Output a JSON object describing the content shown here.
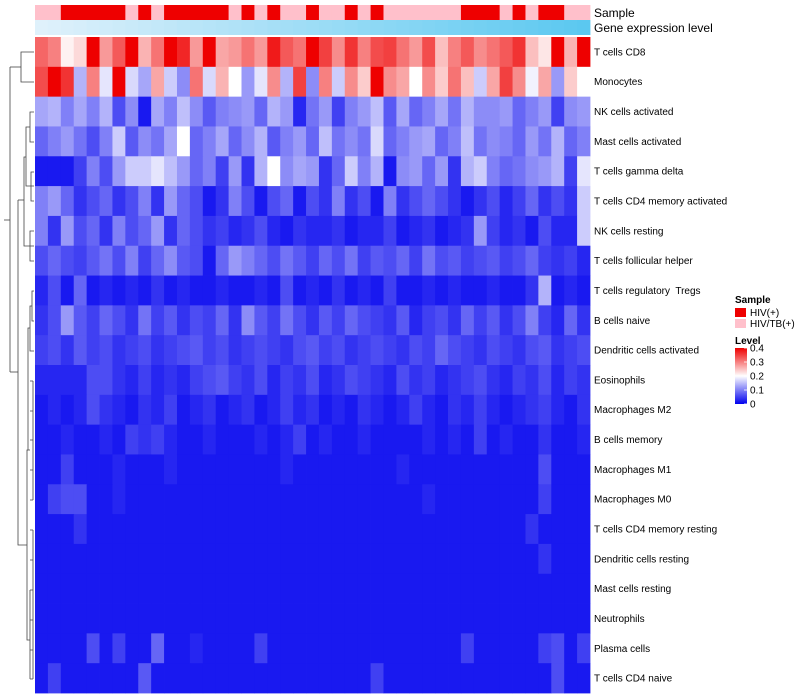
{
  "chart_data": {
    "type": "heatmap",
    "annotation_labels": {
      "sample": "Sample",
      "gene": "Gene expression level"
    },
    "legend": {
      "sample_title": "Sample",
      "sample_entries": [
        {
          "name": "HIV(+)",
          "color": "#ee0000"
        },
        {
          "name": "HIV/TB(+)",
          "color": "#ffc0cb"
        }
      ],
      "level_title": "Level",
      "level_ticks": [
        "0.4",
        "0.3",
        "0.2",
        "0.1",
        "0"
      ],
      "level_values": [
        0.4,
        0.3,
        0.2,
        0.1,
        0
      ]
    },
    "color_scale": {
      "min": 0,
      "mid": 0.2,
      "max": 0.4,
      "low": "#0000ee",
      "mid_color": "#ffffff",
      "high": "#ee0000"
    },
    "gene_bar_colors": [
      "#dff1fb",
      "#5bc8f0"
    ],
    "sample_group": [
      1,
      1,
      0,
      0,
      0,
      0,
      0,
      1,
      0,
      1,
      0,
      0,
      0,
      0,
      0,
      1,
      0,
      1,
      0,
      1,
      1,
      0,
      1,
      1,
      0,
      1,
      0,
      1,
      1,
      1,
      1,
      1,
      1,
      0,
      0,
      0,
      1,
      0,
      1,
      0,
      0,
      1,
      1
    ],
    "rows": [
      "T cells CD8",
      "Monocytes",
      "NK cells activated",
      "Mast cells activated",
      "T cells gamma delta",
      "T cells CD4 memory activated",
      "NK cells resting",
      "T cells follicular helper",
      "T cells regulatory  Tregs",
      "B cells naive",
      "Dendritic cells activated",
      "Eosinophils",
      "Macrophages M2",
      "B cells memory",
      "Macrophages M1",
      "Macrophages M0",
      "T cells CD4 memory resting",
      "Dendritic cells resting",
      "Mast cells resting",
      "Neutrophils",
      "Plasma cells",
      "T cells CD4 naive"
    ],
    "values": [
      [
        0.32,
        0.3,
        0.21,
        0.23,
        0.4,
        0.28,
        0.33,
        0.4,
        0.26,
        0.31,
        0.4,
        0.37,
        0.28,
        0.4,
        0.27,
        0.28,
        0.31,
        0.28,
        0.38,
        0.33,
        0.31,
        0.4,
        0.35,
        0.29,
        0.36,
        0.3,
        0.34,
        0.35,
        0.31,
        0.28,
        0.34,
        0.25,
        0.3,
        0.33,
        0.29,
        0.31,
        0.33,
        0.36,
        0.25,
        0.22,
        0.4,
        0.26,
        0.4
      ],
      [
        0.34,
        0.4,
        0.36,
        0.14,
        0.3,
        0.18,
        0.4,
        0.17,
        0.13,
        0.27,
        0.16,
        0.11,
        0.31,
        0.17,
        0.26,
        0.2,
        0.12,
        0.18,
        0.29,
        0.14,
        0.35,
        0.11,
        0.3,
        0.16,
        0.29,
        0.24,
        0.4,
        0.29,
        0.27,
        0.2,
        0.29,
        0.24,
        0.31,
        0.25,
        0.16,
        0.27,
        0.35,
        0.29,
        0.19,
        0.27,
        0.12,
        0.24,
        0.2
      ],
      [
        0.13,
        0.14,
        0.1,
        0.13,
        0.1,
        0.14,
        0.06,
        0.11,
        0.02,
        0.13,
        0.1,
        0.15,
        0.11,
        0.07,
        0.1,
        0.11,
        0.12,
        0.08,
        0.14,
        0.12,
        0.03,
        0.09,
        0.12,
        0.05,
        0.1,
        0.12,
        0.15,
        0.07,
        0.13,
        0.08,
        0.1,
        0.13,
        0.09,
        0.14,
        0.11,
        0.11,
        0.12,
        0.08,
        0.1,
        0.12,
        0.05,
        0.11,
        0.12
      ],
      [
        0.08,
        0.1,
        0.12,
        0.09,
        0.06,
        0.1,
        0.16,
        0.07,
        0.11,
        0.09,
        0.13,
        0.2,
        0.08,
        0.1,
        0.13,
        0.08,
        0.11,
        0.14,
        0.07,
        0.1,
        0.12,
        0.08,
        0.15,
        0.09,
        0.11,
        0.09,
        0.17,
        0.08,
        0.1,
        0.12,
        0.13,
        0.08,
        0.1,
        0.15,
        0.09,
        0.11,
        0.1,
        0.08,
        0.12,
        0.09,
        0.14,
        0.08,
        0.1
      ],
      [
        0.02,
        0.02,
        0.02,
        0.05,
        0.1,
        0.06,
        0.12,
        0.16,
        0.16,
        0.18,
        0.15,
        0.12,
        0.08,
        0.1,
        0.05,
        0.12,
        0.04,
        0.14,
        0.2,
        0.11,
        0.13,
        0.12,
        0.04,
        0.08,
        0.16,
        0.1,
        0.14,
        0.02,
        0.11,
        0.12,
        0.08,
        0.12,
        0.04,
        0.14,
        0.16,
        0.1,
        0.08,
        0.09,
        0.11,
        0.12,
        0.14,
        0.05,
        0.18
      ],
      [
        0.1,
        0.12,
        0.08,
        0.04,
        0.06,
        0.08,
        0.04,
        0.06,
        0.1,
        0.04,
        0.12,
        0.08,
        0.06,
        0.02,
        0.04,
        0.1,
        0.06,
        0.02,
        0.06,
        0.08,
        0.02,
        0.06,
        0.04,
        0.1,
        0.04,
        0.06,
        0.02,
        0.1,
        0.04,
        0.06,
        0.08,
        0.06,
        0.04,
        0.02,
        0.04,
        0.06,
        0.03,
        0.05,
        0.08,
        0.04,
        0.06,
        0.04,
        0.16
      ],
      [
        0.1,
        0.04,
        0.12,
        0.06,
        0.08,
        0.04,
        0.1,
        0.06,
        0.08,
        0.12,
        0.04,
        0.08,
        0.06,
        0.04,
        0.05,
        0.03,
        0.04,
        0.06,
        0.03,
        0.02,
        0.04,
        0.03,
        0.03,
        0.04,
        0.02,
        0.03,
        0.03,
        0.05,
        0.02,
        0.03,
        0.04,
        0.02,
        0.03,
        0.04,
        0.12,
        0.05,
        0.03,
        0.04,
        0.02,
        0.06,
        0.03,
        0.03,
        0.16
      ],
      [
        0.06,
        0.08,
        0.06,
        0.05,
        0.07,
        0.09,
        0.06,
        0.1,
        0.05,
        0.08,
        0.11,
        0.07,
        0.06,
        0.02,
        0.08,
        0.12,
        0.1,
        0.08,
        0.06,
        0.09,
        0.07,
        0.05,
        0.08,
        0.06,
        0.09,
        0.05,
        0.07,
        0.06,
        0.08,
        0.05,
        0.09,
        0.06,
        0.07,
        0.05,
        0.06,
        0.07,
        0.05,
        0.06,
        0.08,
        0.05,
        0.04,
        0.05,
        0.03
      ],
      [
        0.03,
        0.06,
        0.02,
        0.08,
        0.02,
        0.03,
        0.02,
        0.03,
        0.02,
        0.04,
        0.02,
        0.03,
        0.02,
        0.02,
        0.03,
        0.02,
        0.02,
        0.03,
        0.02,
        0.06,
        0.02,
        0.03,
        0.02,
        0.04,
        0.02,
        0.03,
        0.02,
        0.05,
        0.02,
        0.02,
        0.03,
        0.02,
        0.03,
        0.02,
        0.02,
        0.03,
        0.02,
        0.02,
        0.04,
        0.14,
        0.02,
        0.03,
        0.02
      ],
      [
        0.04,
        0.06,
        0.12,
        0.07,
        0.05,
        0.08,
        0.06,
        0.04,
        0.09,
        0.05,
        0.07,
        0.04,
        0.06,
        0.05,
        0.08,
        0.04,
        0.11,
        0.07,
        0.05,
        0.09,
        0.06,
        0.04,
        0.07,
        0.05,
        0.08,
        0.06,
        0.05,
        0.04,
        0.07,
        0.03,
        0.05,
        0.06,
        0.04,
        0.08,
        0.05,
        0.07,
        0.04,
        0.06,
        0.1,
        0.05,
        0.03,
        0.08,
        0.04
      ],
      [
        0.05,
        0.06,
        0.04,
        0.07,
        0.05,
        0.06,
        0.04,
        0.05,
        0.06,
        0.04,
        0.05,
        0.06,
        0.07,
        0.05,
        0.06,
        0.04,
        0.05,
        0.06,
        0.05,
        0.04,
        0.06,
        0.07,
        0.05,
        0.06,
        0.04,
        0.05,
        0.06,
        0.05,
        0.04,
        0.06,
        0.05,
        0.08,
        0.06,
        0.05,
        0.04,
        0.06,
        0.05,
        0.04,
        0.06,
        0.07,
        0.04,
        0.05,
        0.06
      ],
      [
        0.03,
        0.03,
        0.03,
        0.03,
        0.06,
        0.06,
        0.04,
        0.03,
        0.05,
        0.03,
        0.04,
        0.03,
        0.05,
        0.06,
        0.07,
        0.05,
        0.04,
        0.06,
        0.03,
        0.05,
        0.04,
        0.06,
        0.03,
        0.04,
        0.06,
        0.05,
        0.04,
        0.03,
        0.06,
        0.04,
        0.05,
        0.03,
        0.04,
        0.05,
        0.06,
        0.04,
        0.03,
        0.05,
        0.04,
        0.06,
        0.03,
        0.05,
        0.04
      ],
      [
        0.02,
        0.03,
        0.02,
        0.03,
        0.06,
        0.04,
        0.03,
        0.02,
        0.04,
        0.03,
        0.05,
        0.02,
        0.03,
        0.04,
        0.02,
        0.03,
        0.04,
        0.02,
        0.03,
        0.05,
        0.03,
        0.04,
        0.02,
        0.03,
        0.02,
        0.04,
        0.03,
        0.02,
        0.03,
        0.05,
        0.03,
        0.02,
        0.04,
        0.03,
        0.05,
        0.03,
        0.02,
        0.03,
        0.04,
        0.05,
        0.03,
        0.02,
        0.04
      ],
      [
        0.02,
        0.02,
        0.03,
        0.02,
        0.02,
        0.03,
        0.02,
        0.05,
        0.04,
        0.05,
        0.03,
        0.02,
        0.02,
        0.03,
        0.02,
        0.02,
        0.02,
        0.03,
        0.02,
        0.03,
        0.05,
        0.02,
        0.03,
        0.02,
        0.02,
        0.03,
        0.02,
        0.02,
        0.02,
        0.02,
        0.03,
        0.02,
        0.03,
        0.02,
        0.05,
        0.02,
        0.03,
        0.02,
        0.02,
        0.04,
        0.02,
        0.02,
        0.03
      ],
      [
        0.02,
        0.02,
        0.05,
        0.02,
        0.02,
        0.02,
        0.03,
        0.02,
        0.02,
        0.02,
        0.03,
        0.02,
        0.02,
        0.02,
        0.02,
        0.02,
        0.02,
        0.02,
        0.02,
        0.03,
        0.02,
        0.02,
        0.02,
        0.02,
        0.02,
        0.02,
        0.02,
        0.02,
        0.03,
        0.02,
        0.02,
        0.02,
        0.02,
        0.02,
        0.02,
        0.02,
        0.02,
        0.02,
        0.02,
        0.06,
        0.02,
        0.02,
        0.02
      ],
      [
        0.02,
        0.05,
        0.06,
        0.06,
        0.02,
        0.02,
        0.03,
        0.02,
        0.02,
        0.02,
        0.02,
        0.02,
        0.02,
        0.02,
        0.02,
        0.02,
        0.02,
        0.02,
        0.02,
        0.02,
        0.02,
        0.02,
        0.02,
        0.02,
        0.02,
        0.02,
        0.02,
        0.02,
        0.02,
        0.02,
        0.03,
        0.02,
        0.02,
        0.02,
        0.02,
        0.02,
        0.02,
        0.02,
        0.02,
        0.05,
        0.02,
        0.02,
        0.02
      ],
      [
        0.02,
        0.02,
        0.02,
        0.04,
        0.02,
        0.02,
        0.02,
        0.02,
        0.02,
        0.02,
        0.02,
        0.02,
        0.02,
        0.02,
        0.02,
        0.02,
        0.02,
        0.02,
        0.02,
        0.02,
        0.02,
        0.02,
        0.02,
        0.02,
        0.02,
        0.02,
        0.02,
        0.02,
        0.02,
        0.02,
        0.02,
        0.02,
        0.02,
        0.02,
        0.02,
        0.02,
        0.02,
        0.02,
        0.04,
        0.02,
        0.02,
        0.02,
        0.02
      ],
      [
        0.02,
        0.02,
        0.02,
        0.02,
        0.02,
        0.02,
        0.02,
        0.02,
        0.02,
        0.02,
        0.02,
        0.02,
        0.02,
        0.02,
        0.02,
        0.02,
        0.02,
        0.02,
        0.02,
        0.02,
        0.02,
        0.02,
        0.02,
        0.02,
        0.02,
        0.02,
        0.02,
        0.02,
        0.02,
        0.02,
        0.02,
        0.02,
        0.02,
        0.02,
        0.02,
        0.02,
        0.02,
        0.02,
        0.02,
        0.04,
        0.02,
        0.02,
        0.02
      ],
      [
        0.02,
        0.02,
        0.02,
        0.02,
        0.02,
        0.02,
        0.02,
        0.02,
        0.02,
        0.02,
        0.02,
        0.02,
        0.02,
        0.02,
        0.02,
        0.02,
        0.02,
        0.02,
        0.02,
        0.02,
        0.02,
        0.02,
        0.02,
        0.02,
        0.02,
        0.02,
        0.02,
        0.02,
        0.02,
        0.02,
        0.02,
        0.02,
        0.02,
        0.02,
        0.02,
        0.02,
        0.02,
        0.02,
        0.02,
        0.02,
        0.02,
        0.02,
        0.02
      ],
      [
        0.02,
        0.02,
        0.02,
        0.02,
        0.02,
        0.02,
        0.02,
        0.02,
        0.02,
        0.02,
        0.02,
        0.02,
        0.02,
        0.02,
        0.02,
        0.02,
        0.02,
        0.02,
        0.02,
        0.02,
        0.02,
        0.02,
        0.02,
        0.02,
        0.02,
        0.02,
        0.02,
        0.02,
        0.02,
        0.02,
        0.02,
        0.02,
        0.02,
        0.02,
        0.02,
        0.02,
        0.02,
        0.02,
        0.02,
        0.02,
        0.02,
        0.02,
        0.02
      ],
      [
        0.02,
        0.02,
        0.02,
        0.02,
        0.06,
        0.02,
        0.05,
        0.02,
        0.02,
        0.08,
        0.02,
        0.02,
        0.03,
        0.02,
        0.02,
        0.02,
        0.02,
        0.05,
        0.02,
        0.02,
        0.02,
        0.02,
        0.02,
        0.02,
        0.02,
        0.02,
        0.02,
        0.02,
        0.02,
        0.02,
        0.02,
        0.02,
        0.02,
        0.05,
        0.02,
        0.02,
        0.02,
        0.02,
        0.02,
        0.05,
        0.06,
        0.02,
        0.05
      ],
      [
        0.02,
        0.05,
        0.02,
        0.02,
        0.02,
        0.02,
        0.02,
        0.02,
        0.07,
        0.02,
        0.02,
        0.02,
        0.02,
        0.02,
        0.02,
        0.02,
        0.02,
        0.02,
        0.02,
        0.02,
        0.02,
        0.02,
        0.02,
        0.02,
        0.02,
        0.02,
        0.05,
        0.02,
        0.02,
        0.02,
        0.02,
        0.02,
        0.02,
        0.02,
        0.02,
        0.02,
        0.02,
        0.02,
        0.02,
        0.02,
        0.06,
        0.02,
        0.02
      ]
    ]
  }
}
